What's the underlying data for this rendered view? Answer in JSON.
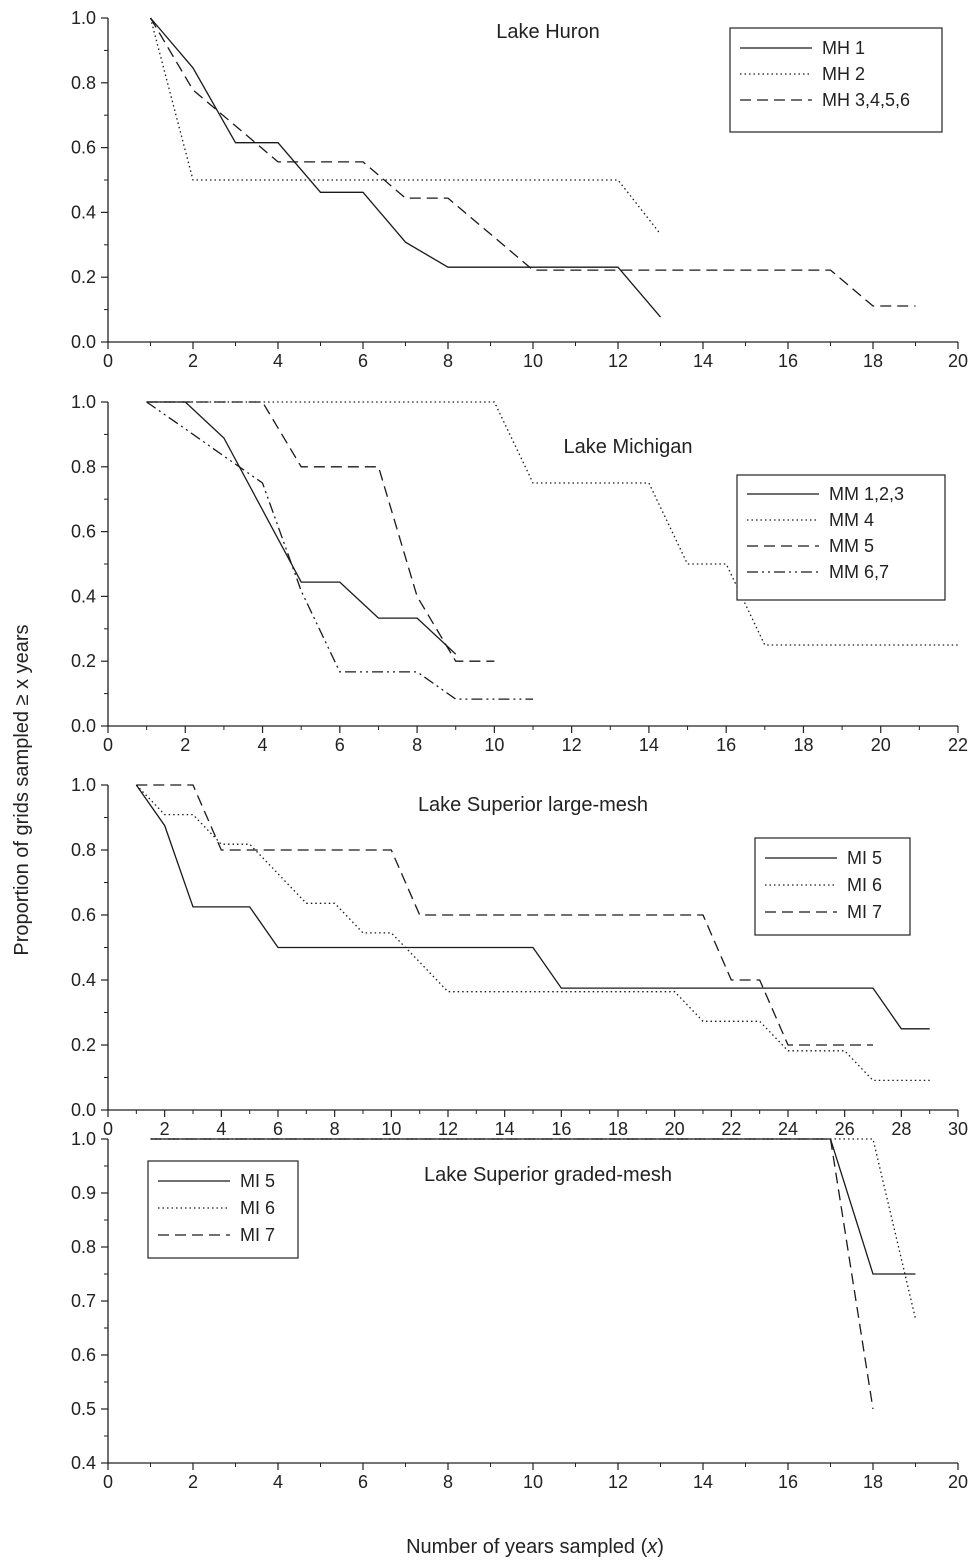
{
  "figure": {
    "ylabel": "Proportion of grids sampled ≥ x years",
    "xlabel_prefix": "Number of years sampled (",
    "xlabel_var": "x",
    "xlabel_suffix": ")"
  },
  "chart_data": [
    {
      "type": "line",
      "title": "Lake Huron",
      "xlim": [
        0,
        20
      ],
      "ylim": [
        0,
        1
      ],
      "xticks": [
        0,
        2,
        4,
        6,
        8,
        10,
        12,
        14,
        16,
        18,
        20
      ],
      "yticks": [
        0,
        0.2,
        0.4,
        0.6,
        0.8,
        1.0
      ],
      "ytick_labels": [
        "0.0",
        "0.2",
        "0.4",
        "0.6",
        "0.8",
        "1.0"
      ],
      "legend_position": "top-right",
      "series": [
        {
          "name": "MH 1",
          "dash": "solid",
          "points": [
            [
              1,
              1.0
            ],
            [
              2,
              0.846
            ],
            [
              3,
              0.615
            ],
            [
              4,
              0.615
            ],
            [
              5,
              0.462
            ],
            [
              6,
              0.462
            ],
            [
              7,
              0.308
            ],
            [
              8,
              0.231
            ],
            [
              9,
              0.231
            ],
            [
              10,
              0.231
            ],
            [
              11,
              0.231
            ],
            [
              12,
              0.231
            ],
            [
              13,
              0.077
            ]
          ]
        },
        {
          "name": "MH 2",
          "dash": "dot",
          "points": [
            [
              1,
              1.0
            ],
            [
              2,
              0.5
            ],
            [
              12,
              0.5
            ],
            [
              13,
              0.333
            ]
          ]
        },
        {
          "name": "MH 3,4,5,6",
          "dash": "dash",
          "points": [
            [
              1,
              1.0
            ],
            [
              2,
              0.778
            ],
            [
              3,
              0.667
            ],
            [
              4,
              0.556
            ],
            [
              6,
              0.556
            ],
            [
              7,
              0.444
            ],
            [
              8,
              0.444
            ],
            [
              10,
              0.222
            ],
            [
              17,
              0.222
            ],
            [
              18,
              0.111
            ],
            [
              19,
              0.111
            ]
          ]
        }
      ]
    },
    {
      "type": "line",
      "title": "Lake Michigan",
      "xlim": [
        0,
        22
      ],
      "ylim": [
        0,
        1
      ],
      "xticks": [
        0,
        2,
        4,
        6,
        8,
        10,
        12,
        14,
        16,
        18,
        20,
        22
      ],
      "yticks": [
        0,
        0.2,
        0.4,
        0.6,
        0.8,
        1.0
      ],
      "ytick_labels": [
        "0.0",
        "0.2",
        "0.4",
        "0.6",
        "0.8",
        "1.0"
      ],
      "legend_position": "top-right",
      "series": [
        {
          "name": "MM 1,2,3",
          "dash": "solid",
          "points": [
            [
              1,
              1.0
            ],
            [
              2,
              1.0
            ],
            [
              3,
              0.889
            ],
            [
              4,
              0.667
            ],
            [
              5,
              0.444
            ],
            [
              6,
              0.444
            ],
            [
              7,
              0.333
            ],
            [
              8,
              0.333
            ],
            [
              9,
              0.222
            ]
          ]
        },
        {
          "name": "MM 4",
          "dash": "dot",
          "points": [
            [
              1,
              1.0
            ],
            [
              10,
              1.0
            ],
            [
              11,
              0.75
            ],
            [
              14,
              0.75
            ],
            [
              15,
              0.5
            ],
            [
              16,
              0.5
            ],
            [
              17,
              0.25
            ],
            [
              22,
              0.25
            ]
          ]
        },
        {
          "name": "MM 5",
          "dash": "dash",
          "points": [
            [
              1,
              1.0
            ],
            [
              4,
              1.0
            ],
            [
              5,
              0.8
            ],
            [
              7,
              0.8
            ],
            [
              8,
              0.4
            ],
            [
              9,
              0.2
            ],
            [
              10,
              0.2
            ]
          ]
        },
        {
          "name": "MM 6,7",
          "dash": "dashdotdot",
          "points": [
            [
              1,
              1.0
            ],
            [
              2,
              0.917
            ],
            [
              3,
              0.833
            ],
            [
              4,
              0.75
            ],
            [
              5,
              0.417
            ],
            [
              6,
              0.167
            ],
            [
              7,
              0.167
            ],
            [
              8,
              0.167
            ],
            [
              9,
              0.083
            ],
            [
              11,
              0.083
            ]
          ]
        }
      ]
    },
    {
      "type": "line",
      "title": "Lake Superior large-mesh",
      "xlim": [
        0,
        30
      ],
      "ylim": [
        0,
        1
      ],
      "xticks": [
        0,
        2,
        4,
        6,
        8,
        10,
        12,
        14,
        16,
        18,
        20,
        22,
        24,
        26,
        28,
        30
      ],
      "yticks": [
        0,
        0.2,
        0.4,
        0.6,
        0.8,
        1.0
      ],
      "ytick_labels": [
        "0.0",
        "0.2",
        "0.4",
        "0.6",
        "0.8",
        "1.0"
      ],
      "legend_position": "top-right",
      "series": [
        {
          "name": "MI 5",
          "dash": "solid",
          "points": [
            [
              1,
              1.0
            ],
            [
              2,
              0.875
            ],
            [
              3,
              0.625
            ],
            [
              5,
              0.625
            ],
            [
              6,
              0.5
            ],
            [
              15,
              0.5
            ],
            [
              16,
              0.375
            ],
            [
              27,
              0.375
            ],
            [
              28,
              0.25
            ],
            [
              29,
              0.25
            ]
          ]
        },
        {
          "name": "MI 6",
          "dash": "dot",
          "points": [
            [
              1,
              1.0
            ],
            [
              2,
              0.909
            ],
            [
              3,
              0.909
            ],
            [
              4,
              0.818
            ],
            [
              5,
              0.818
            ],
            [
              6,
              0.727
            ],
            [
              7,
              0.636
            ],
            [
              8,
              0.636
            ],
            [
              9,
              0.545
            ],
            [
              10,
              0.545
            ],
            [
              11,
              0.455
            ],
            [
              12,
              0.364
            ],
            [
              20,
              0.364
            ],
            [
              21,
              0.273
            ],
            [
              23,
              0.273
            ],
            [
              24,
              0.182
            ],
            [
              26,
              0.182
            ],
            [
              27,
              0.091
            ],
            [
              29,
              0.091
            ]
          ]
        },
        {
          "name": "MI 7",
          "dash": "dash",
          "points": [
            [
              1,
              1.0
            ],
            [
              3,
              1.0
            ],
            [
              4,
              0.8
            ],
            [
              10,
              0.8
            ],
            [
              11,
              0.6
            ],
            [
              21,
              0.6
            ],
            [
              22,
              0.4
            ],
            [
              23,
              0.4
            ],
            [
              24,
              0.2
            ],
            [
              27,
              0.2
            ]
          ]
        }
      ]
    },
    {
      "type": "line",
      "title": "Lake Superior graded-mesh",
      "xlim": [
        0,
        20
      ],
      "ylim": [
        0.4,
        1.0
      ],
      "xticks": [
        0,
        2,
        4,
        6,
        8,
        10,
        12,
        14,
        16,
        18,
        20
      ],
      "yticks": [
        0.4,
        0.5,
        0.6,
        0.7,
        0.8,
        0.9,
        1.0
      ],
      "ytick_labels": [
        "0.4",
        "0.5",
        "0.6",
        "0.7",
        "0.8",
        "0.9",
        "1.0"
      ],
      "legend_position": "top-left",
      "series": [
        {
          "name": "MI 5",
          "dash": "solid",
          "points": [
            [
              1,
              1.0
            ],
            [
              17,
              1.0
            ],
            [
              18,
              0.75
            ],
            [
              19,
              0.75
            ]
          ]
        },
        {
          "name": "MI 6",
          "dash": "dot",
          "points": [
            [
              1,
              1.0
            ],
            [
              18,
              1.0
            ],
            [
              19,
              0.667
            ]
          ]
        },
        {
          "name": "MI 7",
          "dash": "dash",
          "points": [
            [
              1,
              1.0
            ],
            [
              17,
              1.0
            ],
            [
              18,
              0.5
            ]
          ]
        }
      ]
    }
  ]
}
